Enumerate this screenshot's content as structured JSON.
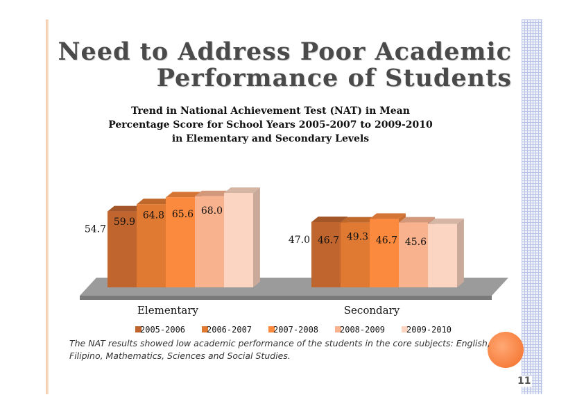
{
  "slide": {
    "title_line1": "Need to Address Poor Academic",
    "title_line2": "Performance of Students",
    "note": "The  NAT results  showed  low academic performance of the students in the  core subjects: English, Filipino, Mathematics, Sciences and Social Studies.",
    "page_number": "11"
  },
  "chart_data": {
    "type": "bar",
    "title": "Trend in National Achievement Test (NAT) in Mean Percentage Score for School Years 2005-2007 to 2009-2010 in Elementary and Secondary Levels",
    "title_lines": [
      "Trend in National Achievement Test (NAT) in Mean",
      "Percentage Score for School Years 2005-2007 to 2009-2010",
      "in Elementary and Secondary Levels"
    ],
    "categories": [
      "Elementary",
      "Secondary"
    ],
    "series": [
      {
        "name": "2005-2006",
        "color": "#c0652e",
        "values": [
          54.7,
          47.0
        ]
      },
      {
        "name": "2006-2007",
        "color": "#e07a33",
        "values": [
          59.9,
          46.7
        ]
      },
      {
        "name": "2007-2008",
        "color": "#fb8a3e",
        "values": [
          64.8,
          49.3
        ]
      },
      {
        "name": "2008-2009",
        "color": "#f8b28e",
        "values": [
          65.6,
          46.7
        ]
      },
      {
        "name": "2009-2010",
        "color": "#fbd5c1",
        "values": [
          68.0,
          45.6
        ]
      }
    ],
    "value_labels": [
      [
        "54.7",
        "59.9",
        "64.8",
        "65.6",
        "68.0"
      ],
      [
        "47.0",
        "46.7",
        "49.3",
        "46.7",
        "45.6"
      ]
    ],
    "legend_position": "bottom",
    "grid": false,
    "three_d": true
  }
}
